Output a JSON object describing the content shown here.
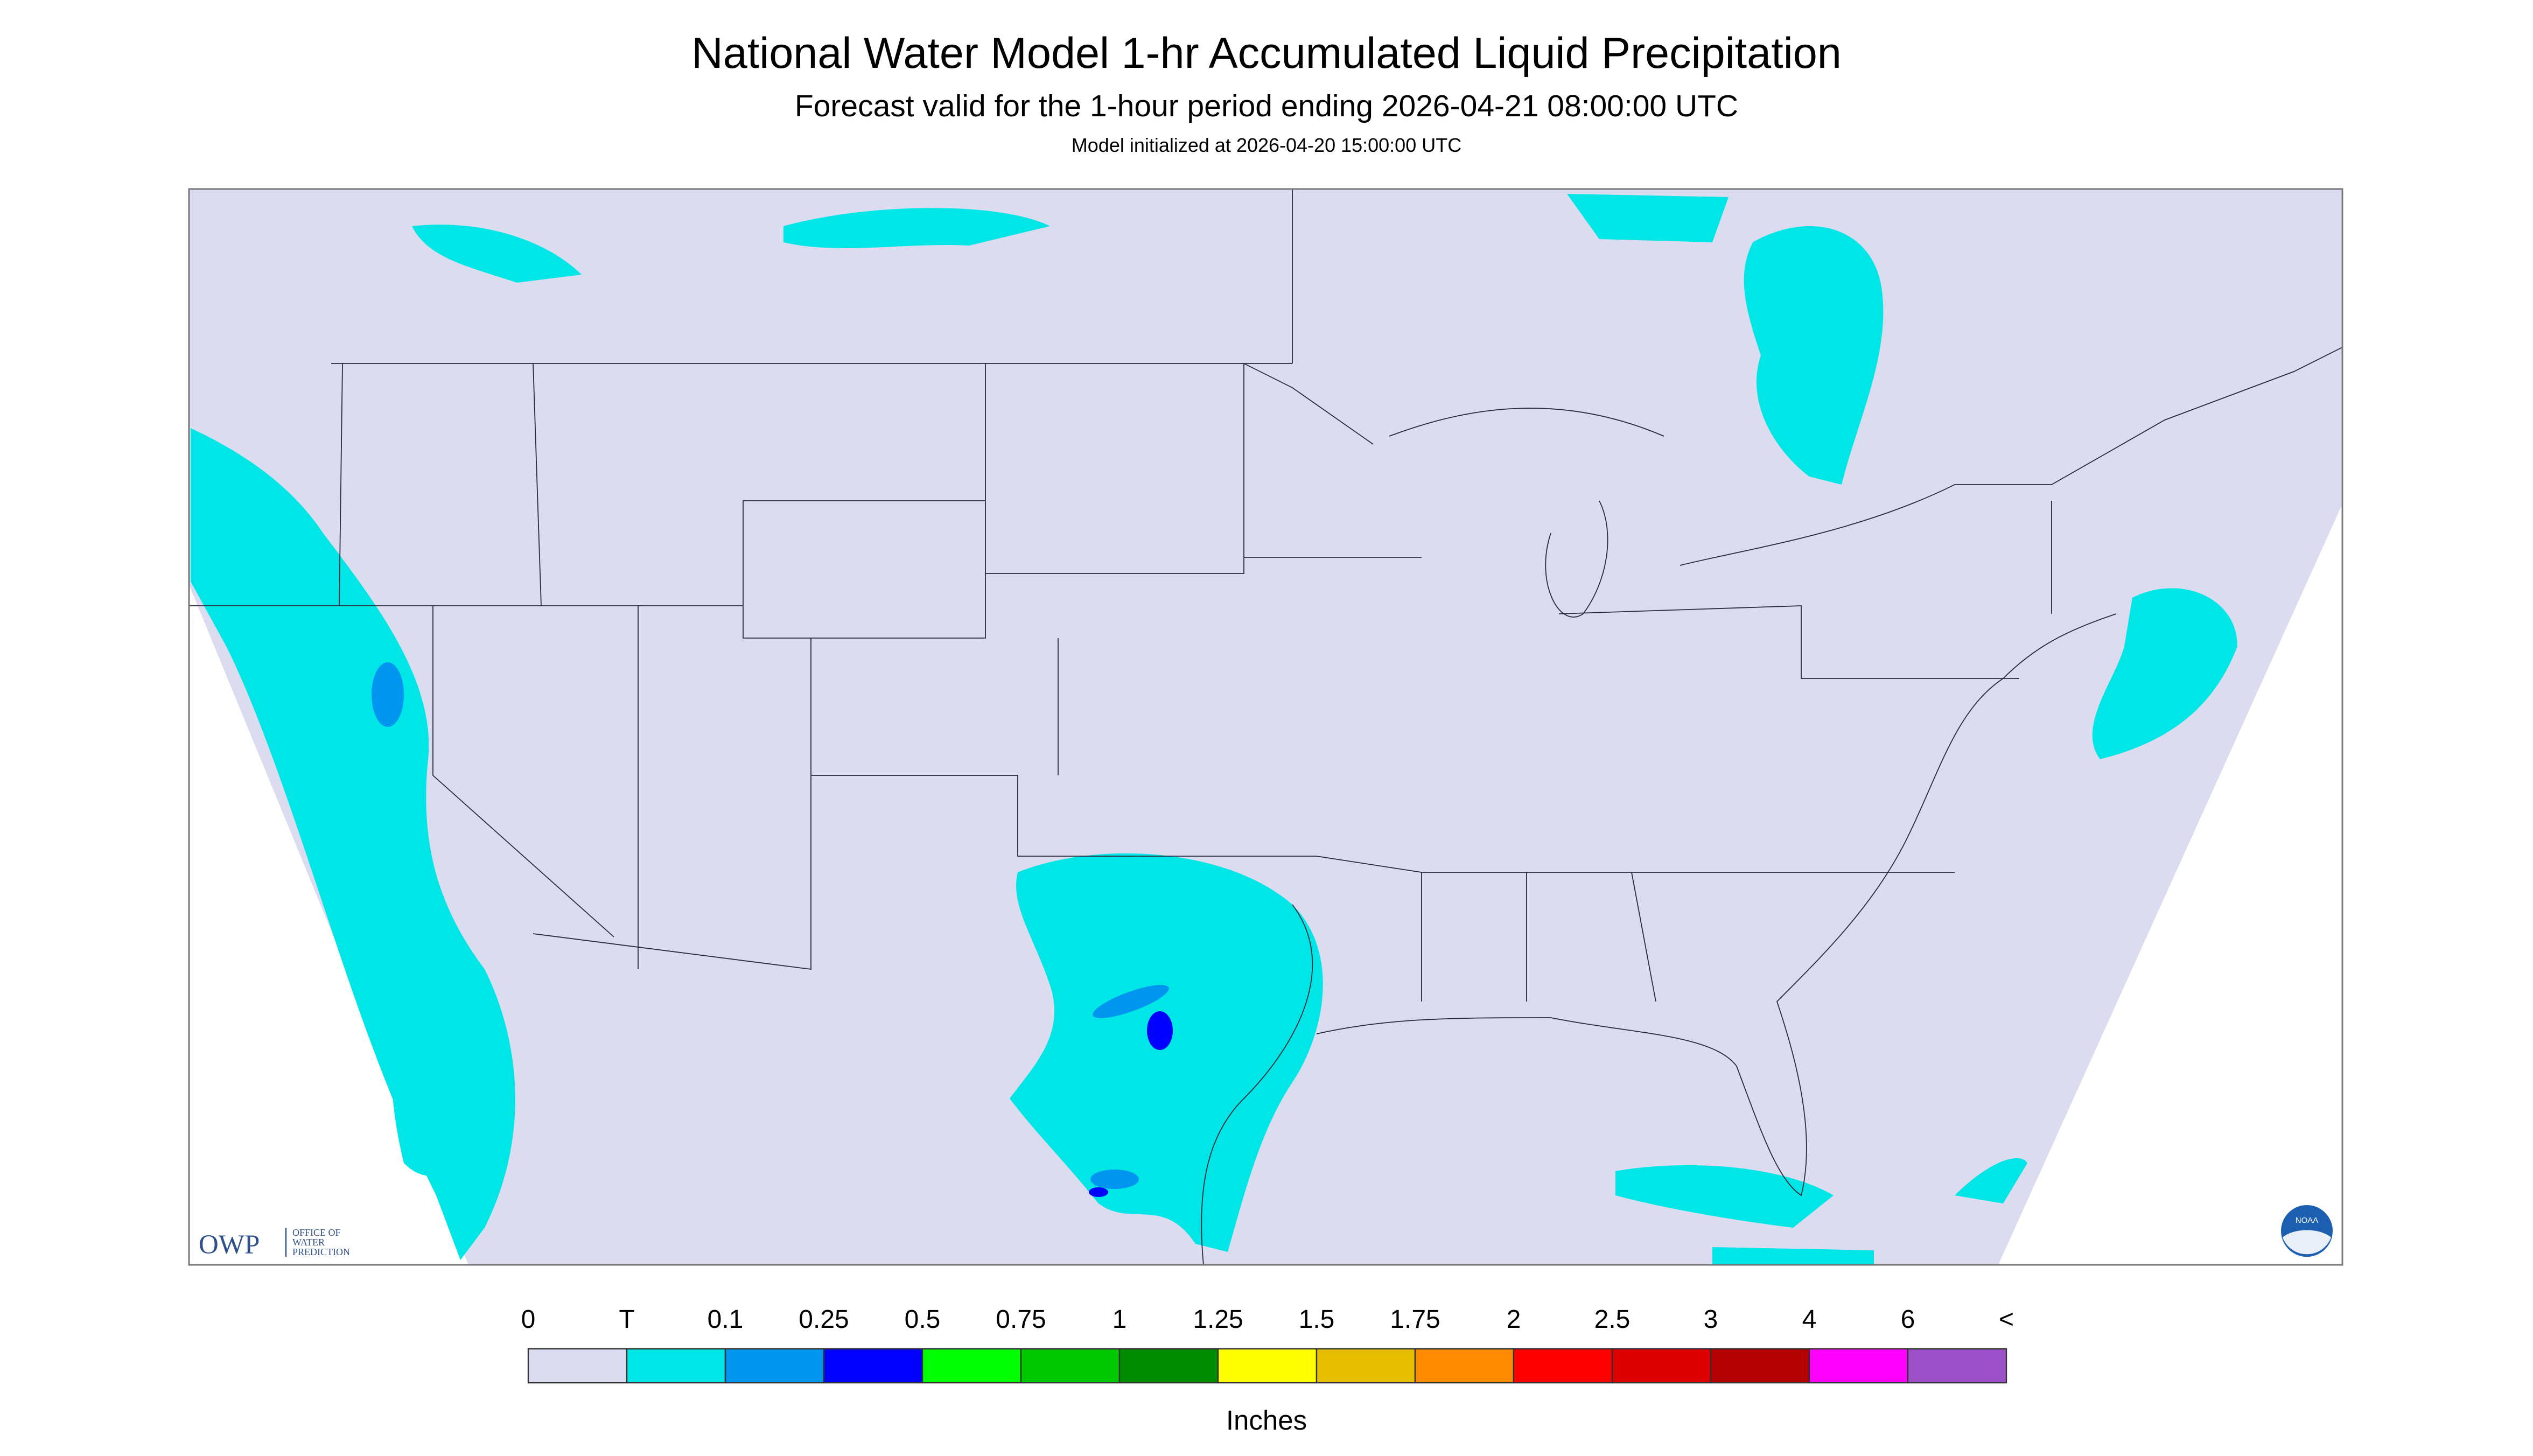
{
  "header": {
    "title": "National Water Model 1-hr Accumulated Liquid Precipitation",
    "subtitle": "Forecast valid for the 1-hour period ending 2026-04-21 08:00:00 UTC",
    "init": "Model initialized at 2026-04-20 15:00:00 UTC"
  },
  "map": {
    "logo": {
      "abbr": "OWP",
      "name": [
        "OFFICE OF",
        "WATER",
        "PREDICTION"
      ]
    },
    "badge": "NOAA"
  },
  "legend": {
    "labels": [
      "0",
      "T",
      "0.1",
      "0.25",
      "0.5",
      "0.75",
      "1",
      "1.25",
      "1.5",
      "1.75",
      "2",
      "2.5",
      "3",
      "4",
      "6",
      "<"
    ],
    "colors": [
      "#dcdcf0",
      "#00e6e6",
      "#0096f0",
      "#0000ff",
      "#00ff00",
      "#00c800",
      "#008c00",
      "#ffff00",
      "#e6c000",
      "#ff8c00",
      "#ff0000",
      "#dc0000",
      "#b40000",
      "#ff00ff",
      "#9b50c8"
    ],
    "unit": "Inches"
  }
}
